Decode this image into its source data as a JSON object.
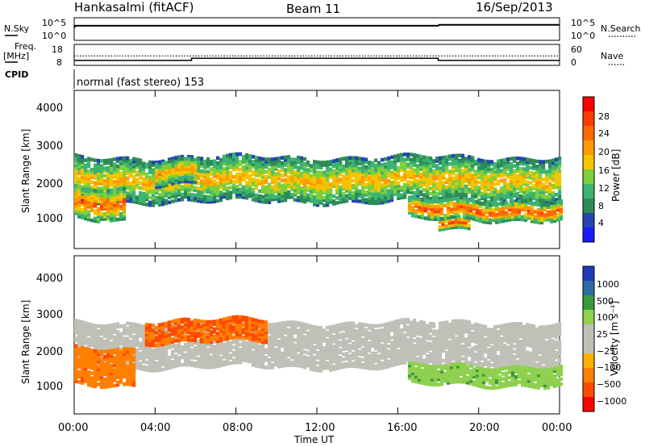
{
  "header": {
    "site": "Hankasalmi (fitACF)",
    "beam": "Beam 11",
    "date": "16/Sep/2013"
  },
  "left_labels": {
    "nsky": "N.Sky",
    "freq": "Freq.",
    "freq_unit": "[MHz]",
    "cpid": "CPID"
  },
  "right_labels": {
    "nsearch": "N.Search",
    "nave": "Nave"
  },
  "cpid_text": "normal (fast stereo) 153",
  "power_label": "Power [dB]",
  "velocity_label": "Velocity [m s⁻¹]",
  "colors": {
    "power": [
      "#1a1aff",
      "#2545b0",
      "#2e8b57",
      "#3cb371",
      "#7fcf3c",
      "#f5c400",
      "#ff9a00",
      "#ff6a00",
      "#ff3c00",
      "#ff0000"
    ],
    "velocity": [
      "#ff0000",
      "#ff4a00",
      "#ff7f00",
      "#ffb000",
      "#c0c0b8",
      "#c0c0b8",
      "#90d050",
      "#3c9a3c",
      "#2e6aa0",
      "#1e3ab8"
    ]
  },
  "chart_data": [
    {
      "type": "line",
      "name_left": "N.Sky",
      "name_right": "N.Search",
      "x_unit": "hours UT",
      "ylabels_left": [
        "10^5",
        "10^0"
      ],
      "ylabels_right": [
        "10^5",
        "10^0"
      ],
      "x": [
        0,
        0.05,
        18,
        18.05,
        24
      ],
      "series": [
        {
          "values": [
            1000,
            3000,
            3000,
            5000,
            5000
          ]
        }
      ]
    },
    {
      "type": "line",
      "name_left": "Freq. [MHz]",
      "name_right": "Nave",
      "yticks_left": [
        "18",
        "8"
      ],
      "yticks_right": [
        "60",
        "0"
      ],
      "series_freq": {
        "x": [
          0,
          24
        ],
        "values": [
          12.5,
          12.5
        ]
      },
      "series_nave": {
        "x": [
          0,
          5.8,
          5.8,
          18,
          18,
          24
        ],
        "values": [
          14,
          14,
          20,
          20,
          14,
          14
        ]
      }
    },
    {
      "type": "heatmap",
      "title": "",
      "ylabel": "Slant Range [km]",
      "yticks": [
        "4000",
        "3000",
        "2000",
        "1000"
      ],
      "ylim": [
        200,
        4600
      ],
      "xlim": [
        0,
        24
      ],
      "colorbar_label": "Power [dB]",
      "colorbar_ticks": [
        "28",
        "24",
        "20",
        "16",
        "12",
        "8",
        "4"
      ],
      "bands": [
        {
          "x0": 0,
          "x1": 24,
          "lo": 1500,
          "hi": 2700,
          "peak": 20
        },
        {
          "x0": 0,
          "x1": 2.5,
          "lo": 1000,
          "hi": 1900,
          "peak": 26
        },
        {
          "x0": 4,
          "x1": 6,
          "lo": 2000,
          "hi": 2700,
          "peak": 22
        },
        {
          "x0": 18,
          "x1": 19.5,
          "lo": 700,
          "hi": 1000,
          "peak": 30
        },
        {
          "x0": 16.5,
          "x1": 24,
          "lo": 1000,
          "hi": 1500,
          "peak": 28
        }
      ]
    },
    {
      "type": "heatmap",
      "ylabel": "Slant Range [km]",
      "yticks": [
        "4000",
        "3000",
        "2000",
        "1000"
      ],
      "ylim": [
        200,
        4600
      ],
      "xlim": [
        0,
        24
      ],
      "xticks": [
        "00:00",
        "04:00",
        "08:00",
        "12:00",
        "16:00",
        "20:00",
        "00:00"
      ],
      "xlabel": "Time UT",
      "colorbar_label": "Velocity [m s⁻¹]",
      "colorbar_ticks": [
        "1000",
        "500",
        "100",
        "25",
        "−25",
        "−100",
        "−500",
        "−1000"
      ],
      "bands": [
        {
          "x0": 0,
          "x1": 24,
          "lo": 1500,
          "hi": 2700,
          "value": 0
        },
        {
          "x0": 0,
          "x1": 3,
          "lo": 1000,
          "hi": 2000,
          "value": -250
        },
        {
          "x0": 3.5,
          "x1": 9.5,
          "lo": 2200,
          "hi": 2800,
          "value": -300
        },
        {
          "x0": 16.5,
          "x1": 24,
          "lo": 1000,
          "hi": 1500,
          "value": 150
        }
      ]
    }
  ]
}
